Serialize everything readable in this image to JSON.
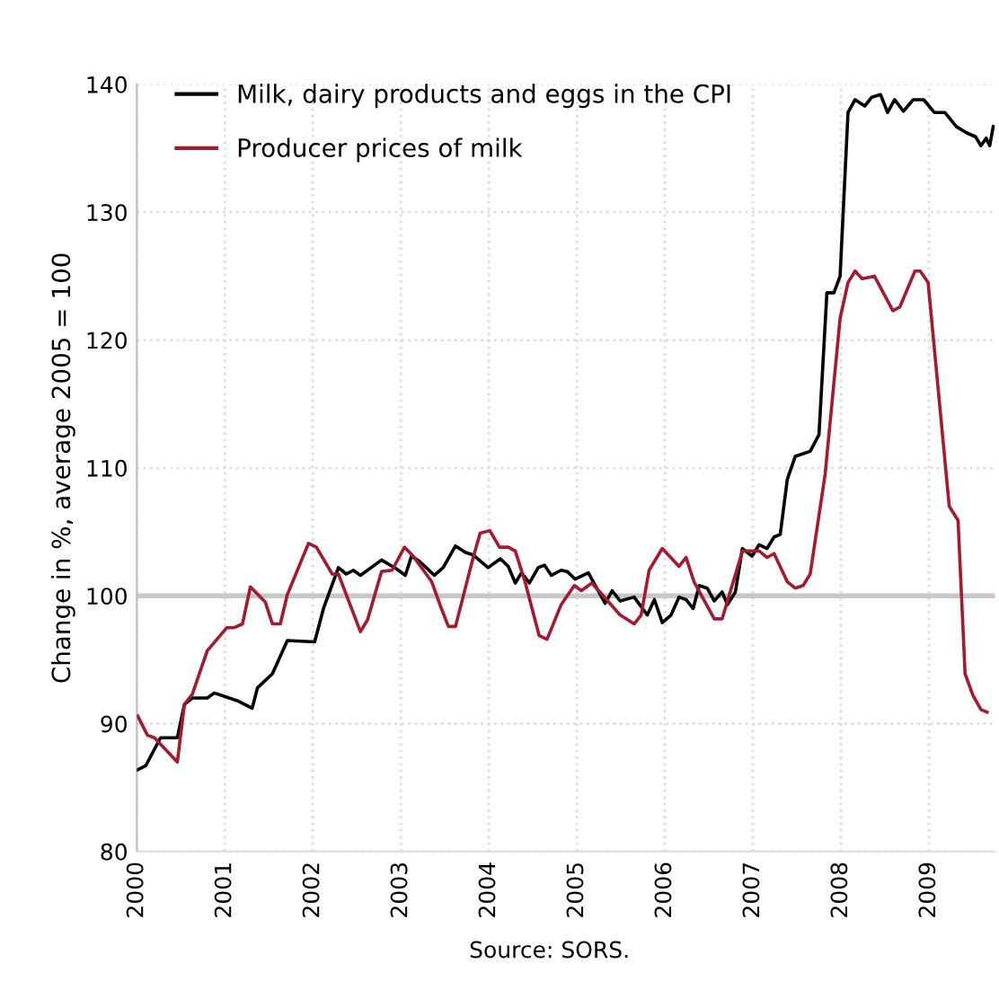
{
  "chart_data": {
    "type": "line",
    "ylabel": "Change in %, average 2005 = 100",
    "annotations": [
      "Source: SORS."
    ],
    "xlim": [
      2000,
      2009.75
    ],
    "xticks": [
      2000,
      2001,
      2002,
      2003,
      2004,
      2005,
      2006,
      2007,
      2008,
      2009
    ],
    "ylim": [
      80,
      140
    ],
    "yticks": [
      80,
      90,
      100,
      110,
      120,
      130,
      140
    ],
    "grid": true,
    "legend": "top left",
    "ref_lines": [
      {
        "axis": "y",
        "value": 100,
        "color": "#c8c8c8"
      }
    ],
    "series": [
      {
        "name": "Milk, dairy products and eggs in the CPI",
        "color": "#000000",
        "x": [
          2000.01,
          2000.1,
          2000.27,
          2000.46,
          2000.54,
          2000.63,
          2000.8,
          2000.88,
          2001.14,
          2001.31,
          2001.37,
          2001.54,
          2001.71,
          2002.02,
          2002.12,
          2002.29,
          2002.38,
          2002.46,
          2002.54,
          2002.78,
          2002.95,
          2003.05,
          2003.12,
          2003.21,
          2003.38,
          2003.48,
          2003.62,
          2003.73,
          2003.82,
          2003.99,
          2004.13,
          2004.22,
          2004.3,
          2004.37,
          2004.46,
          2004.56,
          2004.63,
          2004.71,
          2004.82,
          2004.89,
          2004.98,
          2005.13,
          2005.32,
          2005.4,
          2005.49,
          2005.65,
          2005.8,
          2005.88,
          2005.97,
          2006.07,
          2006.16,
          2006.24,
          2006.32,
          2006.39,
          2006.48,
          2006.56,
          2006.65,
          2006.71,
          2006.8,
          2006.88,
          2006.99,
          2007.07,
          2007.16,
          2007.24,
          2007.31,
          2007.39,
          2007.48,
          2007.65,
          2007.75,
          2007.84,
          2007.92,
          2007.99,
          2008.08,
          2008.16,
          2008.27,
          2008.35,
          2008.45,
          2008.53,
          2008.61,
          2008.71,
          2008.82,
          2008.94,
          2009.06,
          2009.18,
          2009.31,
          2009.43,
          2009.53,
          2009.59,
          2009.65,
          2009.69,
          2009.73
        ],
        "values": [
          86.4,
          86.7,
          88.9,
          88.9,
          91.5,
          92.0,
          92.0,
          92.4,
          91.8,
          91.2,
          92.8,
          93.9,
          96.5,
          96.4,
          99.0,
          102.2,
          101.7,
          102.0,
          101.6,
          102.8,
          102.1,
          101.6,
          103.1,
          102.7,
          101.6,
          102.2,
          103.9,
          103.4,
          103.2,
          102.2,
          102.9,
          102.3,
          101.0,
          101.8,
          101.0,
          102.2,
          102.4,
          101.6,
          102.0,
          101.9,
          101.3,
          101.8,
          99.4,
          100.4,
          99.6,
          99.9,
          98.5,
          99.7,
          97.9,
          98.5,
          99.9,
          99.7,
          99.0,
          100.8,
          100.6,
          99.6,
          100.3,
          99.3,
          100.3,
          103.7,
          103.1,
          104.0,
          103.7,
          104.6,
          104.8,
          109.1,
          110.9,
          111.3,
          112.6,
          123.7,
          123.7,
          125.0,
          137.8,
          138.8,
          138.3,
          139.0,
          139.2,
          137.8,
          138.8,
          137.9,
          138.8,
          138.8,
          137.8,
          137.8,
          136.7,
          136.2,
          135.9,
          135.2,
          135.8,
          135.2,
          136.7
        ]
      },
      {
        "name": "Producer prices of milk",
        "color": "#a6192e",
        "x": [
          2000.01,
          2000.12,
          2000.2,
          2000.46,
          2000.54,
          2000.63,
          2000.8,
          2001.02,
          2001.1,
          2001.2,
          2001.29,
          2001.46,
          2001.54,
          2001.63,
          2001.71,
          2001.95,
          2002.04,
          2002.22,
          2002.29,
          2002.54,
          2002.62,
          2002.78,
          2002.9,
          2003.04,
          2003.14,
          2003.35,
          2003.46,
          2003.54,
          2003.62,
          2003.81,
          2003.9,
          2004.01,
          2004.12,
          2004.22,
          2004.3,
          2004.41,
          2004.57,
          2004.66,
          2004.72,
          2004.82,
          2004.97,
          2005.05,
          2005.17,
          2005.49,
          2005.65,
          2005.73,
          2005.82,
          2005.97,
          2006.16,
          2006.24,
          2006.33,
          2006.56,
          2006.65,
          2006.88,
          2007.07,
          2007.16,
          2007.24,
          2007.39,
          2007.48,
          2007.57,
          2007.65,
          2007.82,
          2007.99,
          2008.08,
          2008.16,
          2008.24,
          2008.38,
          2008.59,
          2008.67,
          2008.84,
          2008.9,
          2008.99,
          2009.23,
          2009.33,
          2009.41,
          2009.5,
          2009.59,
          2009.66
        ],
        "values": [
          90.6,
          89.1,
          88.9,
          87.0,
          91.5,
          92.3,
          95.7,
          97.5,
          97.5,
          97.8,
          100.7,
          99.5,
          97.8,
          97.8,
          100.1,
          104.1,
          103.8,
          101.7,
          101.7,
          97.2,
          98.1,
          101.9,
          102.0,
          103.8,
          103.1,
          101.1,
          99.0,
          97.6,
          97.6,
          102.7,
          104.9,
          105.1,
          103.8,
          103.8,
          103.5,
          101.1,
          96.9,
          96.6,
          97.6,
          99.3,
          100.8,
          100.4,
          101.0,
          98.5,
          97.8,
          98.5,
          102.0,
          103.7,
          102.3,
          103.0,
          101.1,
          98.2,
          98.2,
          103.5,
          103.5,
          103.0,
          103.3,
          101.1,
          100.6,
          100.8,
          101.7,
          109.5,
          121.7,
          124.5,
          125.4,
          124.8,
          125.0,
          122.3,
          122.6,
          125.4,
          125.4,
          124.5,
          107.0,
          105.9,
          93.9,
          92.2,
          91.1,
          90.9
        ]
      }
    ]
  }
}
